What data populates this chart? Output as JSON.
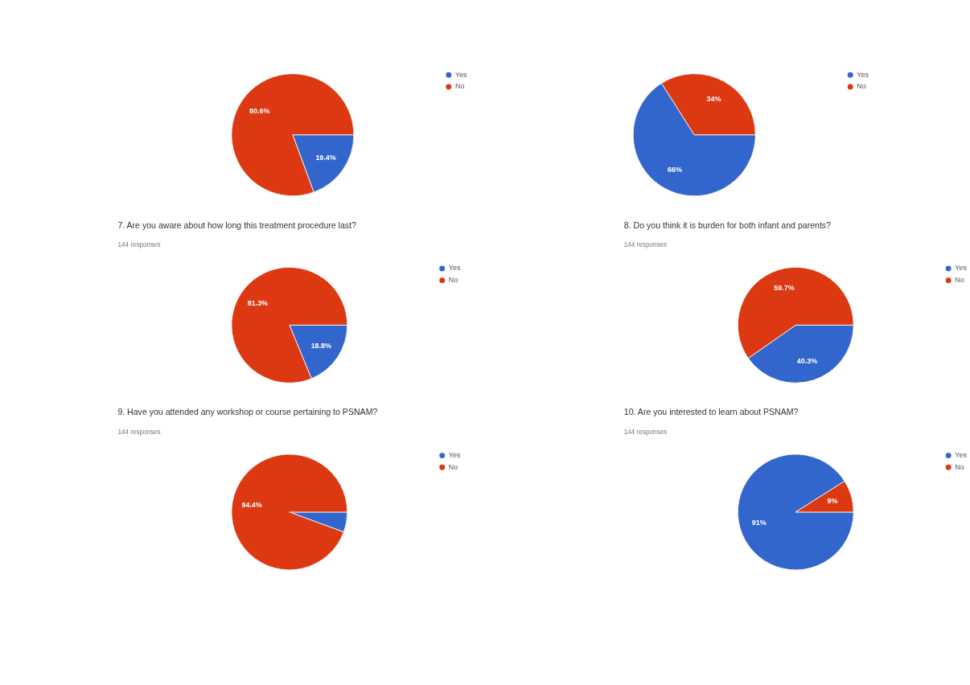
{
  "chart_data": [
    {
      "type": "pie",
      "categories": [
        "Yes",
        "No"
      ],
      "values": [
        19.4,
        80.6
      ],
      "value_labels": [
        "19.4%",
        "80.6%"
      ],
      "colors": [
        "#3366cc",
        "#dc3912"
      ],
      "legend": "top right"
    },
    {
      "type": "pie",
      "categories": [
        "Yes",
        "No"
      ],
      "values": [
        66,
        34
      ],
      "value_labels": [
        "66%",
        "34%"
      ],
      "colors": [
        "#3366cc",
        "#dc3912"
      ],
      "legend": "top right"
    },
    {
      "type": "pie",
      "title": "7.  Are you aware about how long this treatment procedure last?",
      "subtitle": "144 responses",
      "categories": [
        "Yes",
        "No"
      ],
      "values": [
        18.8,
        81.3
      ],
      "value_labels": [
        "18.8%",
        "81.3%"
      ],
      "colors": [
        "#3366cc",
        "#dc3912"
      ],
      "legend": "top right"
    },
    {
      "type": "pie",
      "title": "8.  Do you think it is burden for both infant and parents?",
      "subtitle": "144 responses",
      "categories": [
        "Yes",
        "No"
      ],
      "values": [
        40.3,
        59.7
      ],
      "value_labels": [
        "40.3%",
        "59.7%"
      ],
      "colors": [
        "#3366cc",
        "#dc3912"
      ],
      "legend": "top right"
    },
    {
      "type": "pie",
      "title": "9.  Have you attended any workshop or course pertaining to PSNAM?",
      "subtitle": "144 responses",
      "categories": [
        "Yes",
        "No"
      ],
      "values": [
        5.6,
        94.4
      ],
      "value_labels": [
        null,
        "94.4%"
      ],
      "colors": [
        "#3366cc",
        "#dc3912"
      ],
      "legend": "top right"
    },
    {
      "type": "pie",
      "title": "10.  Are you interested to learn about PSNAM?",
      "subtitle": "144 responses",
      "categories": [
        "Yes",
        "No"
      ],
      "values": [
        91,
        9
      ],
      "value_labels": [
        "91%",
        "9%"
      ],
      "colors": [
        "#3366cc",
        "#dc3912"
      ],
      "legend": "top right"
    }
  ]
}
